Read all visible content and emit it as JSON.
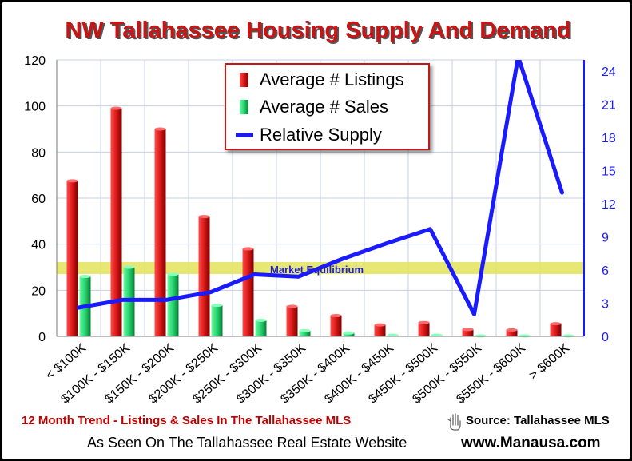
{
  "chart_data": {
    "type": "bar",
    "title": "NW Tallahassee Housing Supply And Demand",
    "categories": [
      "< $100K",
      "$100K - $150K",
      "$150K - $200K",
      "$200K - $250K",
      "$250K - $300K",
      "$300K - $350K",
      "$350K - $400K",
      "$400K - $450K",
      "$450K - $500K",
      "$500K - $550K",
      "$550K - $600K",
      "> $600K"
    ],
    "series": [
      {
        "name": "Average # Listings",
        "type": "bar",
        "axis": "left",
        "color": "#d41414",
        "values": [
          67.5,
          99,
          90,
          52,
          38,
          13,
          9,
          5,
          6,
          3,
          2.8,
          5.5
        ]
      },
      {
        "name": "Average # Sales",
        "type": "bar",
        "axis": "left",
        "color": "#1fcf6a",
        "values": [
          26,
          30,
          27,
          13.5,
          7,
          2.5,
          1.5,
          0.5,
          0.5,
          0.2,
          0.2,
          0.2
        ]
      },
      {
        "name": "Relative Supply",
        "type": "line",
        "axis": "right",
        "color": "#1a1aff",
        "values": [
          2.6,
          3.3,
          3.3,
          4,
          5.6,
          5.4,
          7,
          8.4,
          9.7,
          2,
          25.3,
          13
        ]
      }
    ],
    "ylim_left": [
      0,
      120
    ],
    "yticks_left": [
      "120",
      "100",
      "80",
      "60",
      "40",
      "20",
      "0"
    ],
    "ylim_right": [
      0,
      25
    ],
    "yticks_right": [
      "24",
      "21",
      "18",
      "15",
      "12",
      "9",
      "6",
      "3",
      "0"
    ],
    "equilibrium": {
      "label": "Market Equilibrium",
      "right_axis_value": 6
    },
    "legend_placement": "top-center",
    "grid": true
  },
  "footer": {
    "trend": "12 Month Trend - Listings & Sales In The Tallahassee MLS",
    "source": "Source: Tallahassee MLS",
    "seen_on": "As Seen On The Tallahassee Real Estate Website",
    "website": "www.Manausa.com"
  },
  "colors": {
    "title": "#c81414",
    "grid": "#c6cfe6",
    "line": "#1a1aff",
    "listings": "#d41414",
    "sales": "#1fcf6a",
    "equilibrium_band": "#e3e35a"
  }
}
